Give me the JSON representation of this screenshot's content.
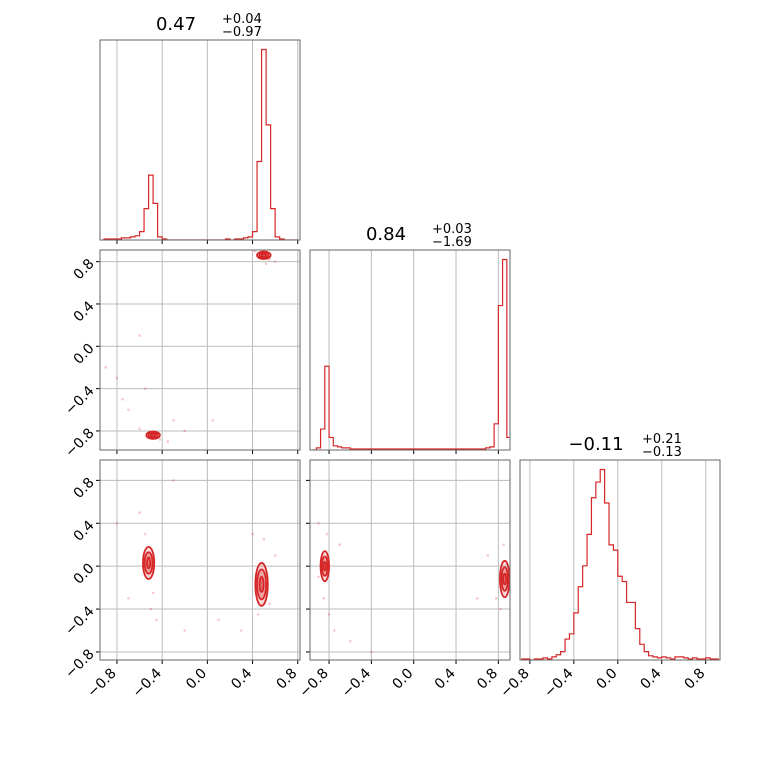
{
  "chart_data": {
    "type": "corner",
    "color": "#d62728",
    "grid": true,
    "ticks": [
      {
        "value": -0.8,
        "label": "−0.8"
      },
      {
        "value": -0.4,
        "label": "−0.4"
      },
      {
        "value": 0.0,
        "label": "0.0"
      },
      {
        "value": 0.4,
        "label": "0.4"
      },
      {
        "value": 0.8,
        "label": "0.8"
      }
    ],
    "params": [
      {
        "title": "0.47",
        "plus": "+0.04",
        "minus": "−0.97",
        "lim": [
          -0.95,
          0.82
        ],
        "bins": [
          -0.92,
          -0.88,
          -0.84,
          -0.8,
          -0.76,
          -0.72,
          -0.68,
          -0.64,
          -0.6,
          -0.56,
          -0.52,
          -0.48,
          -0.44,
          -0.4,
          -0.36,
          -0.32,
          -0.28,
          -0.24,
          -0.2,
          -0.16,
          -0.12,
          -0.08,
          -0.04,
          0.0,
          0.04,
          0.08,
          0.12,
          0.16,
          0.2,
          0.24,
          0.28,
          0.32,
          0.36,
          0.4,
          0.44,
          0.48,
          0.52,
          0.56,
          0.6,
          0.64,
          0.68,
          0.72,
          0.76,
          0.8
        ],
        "counts": [
          1,
          1,
          1,
          1,
          2,
          2,
          3,
          4,
          8,
          30,
          62,
          35,
          3,
          1,
          0,
          0,
          0,
          0,
          0,
          0,
          0,
          0,
          0,
          0,
          0,
          0,
          0,
          1,
          0,
          1,
          1,
          2,
          3,
          8,
          75,
          182,
          110,
          30,
          3,
          1,
          0,
          0,
          0
        ]
      },
      {
        "title": "0.84",
        "plus": "+0.03",
        "minus": "−1.69",
        "lim": [
          -0.98,
          0.91
        ],
        "bins": [
          -0.96,
          -0.92,
          -0.88,
          -0.84,
          -0.8,
          -0.76,
          -0.72,
          -0.68,
          -0.64,
          -0.6,
          -0.56,
          -0.52,
          -0.48,
          -0.44,
          -0.4,
          -0.36,
          -0.32,
          -0.28,
          -0.24,
          -0.2,
          -0.16,
          -0.12,
          -0.08,
          -0.04,
          0.0,
          0.04,
          0.08,
          0.12,
          0.16,
          0.2,
          0.24,
          0.28,
          0.32,
          0.36,
          0.4,
          0.44,
          0.48,
          0.52,
          0.56,
          0.6,
          0.64,
          0.68,
          0.72,
          0.76,
          0.8,
          0.84,
          0.88,
          0.92
        ],
        "counts": [
          0,
          2,
          20,
          80,
          12,
          4,
          3,
          2,
          2,
          1,
          1,
          1,
          1,
          1,
          1,
          1,
          1,
          1,
          1,
          1,
          1,
          1,
          1,
          1,
          1,
          1,
          1,
          1,
          1,
          1,
          1,
          1,
          1,
          1,
          1,
          1,
          1,
          1,
          1,
          1,
          1,
          2,
          3,
          25,
          138,
          182,
          12
        ]
      },
      {
        "title": "−0.11",
        "plus": "+0.21",
        "minus": "−0.13",
        "lim": [
          -0.89,
          0.93
        ],
        "ylim": [
          -0.875,
          0.99
        ],
        "bins": [
          -0.88,
          -0.84,
          -0.8,
          -0.76,
          -0.72,
          -0.68,
          -0.64,
          -0.6,
          -0.56,
          -0.52,
          -0.48,
          -0.44,
          -0.4,
          -0.36,
          -0.32,
          -0.28,
          -0.24,
          -0.2,
          -0.16,
          -0.12,
          -0.08,
          -0.04,
          0.0,
          0.04,
          0.08,
          0.12,
          0.16,
          0.2,
          0.24,
          0.28,
          0.32,
          0.36,
          0.4,
          0.44,
          0.48,
          0.52,
          0.56,
          0.6,
          0.64,
          0.68,
          0.72,
          0.76,
          0.8,
          0.84,
          0.88,
          0.92
        ],
        "counts": [
          1,
          1,
          0,
          1,
          1,
          2,
          1,
          3,
          5,
          8,
          20,
          25,
          45,
          70,
          90,
          120,
          155,
          170,
          182,
          150,
          110,
          105,
          80,
          75,
          55,
          55,
          30,
          15,
          8,
          4,
          3,
          2,
          3,
          2,
          1,
          3,
          3,
          2,
          1,
          2,
          1,
          1,
          2,
          1,
          1
        ]
      }
    ],
    "pairs": [
      {
        "xp": 0,
        "yp": 1,
        "points": [
          [
            0.48,
            0.88
          ],
          [
            0.55,
            0.82
          ],
          [
            0.6,
            0.8
          ],
          [
            0.42,
            0.9
          ],
          [
            0.52,
            0.78
          ],
          [
            -0.5,
            -0.82
          ],
          [
            -0.42,
            -0.88
          ],
          [
            -0.6,
            -0.78
          ],
          [
            -0.35,
            -0.9
          ],
          [
            -0.7,
            -0.6
          ],
          [
            -0.8,
            -0.3
          ],
          [
            -0.6,
            0.1
          ],
          [
            -0.3,
            -0.7
          ],
          [
            0.05,
            -0.7
          ],
          [
            -0.2,
            -0.8
          ],
          [
            -0.75,
            -0.5
          ],
          [
            -0.55,
            -0.4
          ],
          [
            -0.9,
            -0.2
          ]
        ],
        "blobs": [
          {
            "cx": 0.5,
            "cy": 0.86,
            "rx": [
              0.06,
              0.04,
              0.02
            ],
            "ry": [
              0.035,
              0.025,
              0.012
            ]
          },
          {
            "cx": -0.48,
            "cy": -0.84,
            "rx": [
              0.06,
              0.04,
              0.02
            ],
            "ry": [
              0.035,
              0.025,
              0.012
            ]
          }
        ]
      },
      {
        "xp": 0,
        "yp": 2,
        "points": [
          [
            -0.55,
            0.3
          ],
          [
            -0.48,
            -0.25
          ],
          [
            -0.5,
            -0.4
          ],
          [
            -0.6,
            0.5
          ],
          [
            -0.45,
            -0.5
          ],
          [
            0.5,
            0.25
          ],
          [
            0.45,
            -0.45
          ],
          [
            0.55,
            -0.35
          ],
          [
            0.4,
            0.3
          ],
          [
            -0.8,
            0.4
          ],
          [
            -0.2,
            -0.6
          ],
          [
            0.1,
            -0.5
          ],
          [
            -0.3,
            0.8
          ],
          [
            0.3,
            -0.6
          ],
          [
            -0.7,
            -0.3
          ],
          [
            0.6,
            0.1
          ]
        ],
        "blobs": [
          {
            "cx": -0.52,
            "cy": 0.03,
            "rx": [
              0.05,
              0.035,
              0.015
            ],
            "ry": [
              0.15,
              0.1,
              0.05
            ]
          },
          {
            "cx": 0.48,
            "cy": -0.17,
            "rx": [
              0.055,
              0.04,
              0.018
            ],
            "ry": [
              0.2,
              0.14,
              0.07
            ]
          }
        ]
      },
      {
        "xp": 1,
        "yp": 2,
        "points": [
          [
            -0.82,
            0.3
          ],
          [
            -0.85,
            -0.3
          ],
          [
            -0.8,
            -0.45
          ],
          [
            -0.75,
            -0.6
          ],
          [
            -0.9,
            0.4
          ],
          [
            -0.6,
            -0.7
          ],
          [
            0.82,
            -0.4
          ],
          [
            0.78,
            -0.3
          ],
          [
            0.85,
            0.2
          ],
          [
            -0.7,
            0.2
          ],
          [
            -0.4,
            -0.8
          ],
          [
            0.6,
            -0.3
          ],
          [
            -0.9,
            -0.1
          ],
          [
            0.7,
            0.1
          ]
        ],
        "blobs": [
          {
            "cx": -0.84,
            "cy": 0.0,
            "rx": [
              0.04,
              0.028,
              0.012
            ],
            "ry": [
              0.14,
              0.09,
              0.04
            ]
          },
          {
            "cx": 0.86,
            "cy": -0.12,
            "rx": [
              0.045,
              0.03,
              0.014
            ],
            "ry": [
              0.17,
              0.11,
              0.05
            ]
          }
        ]
      }
    ]
  }
}
